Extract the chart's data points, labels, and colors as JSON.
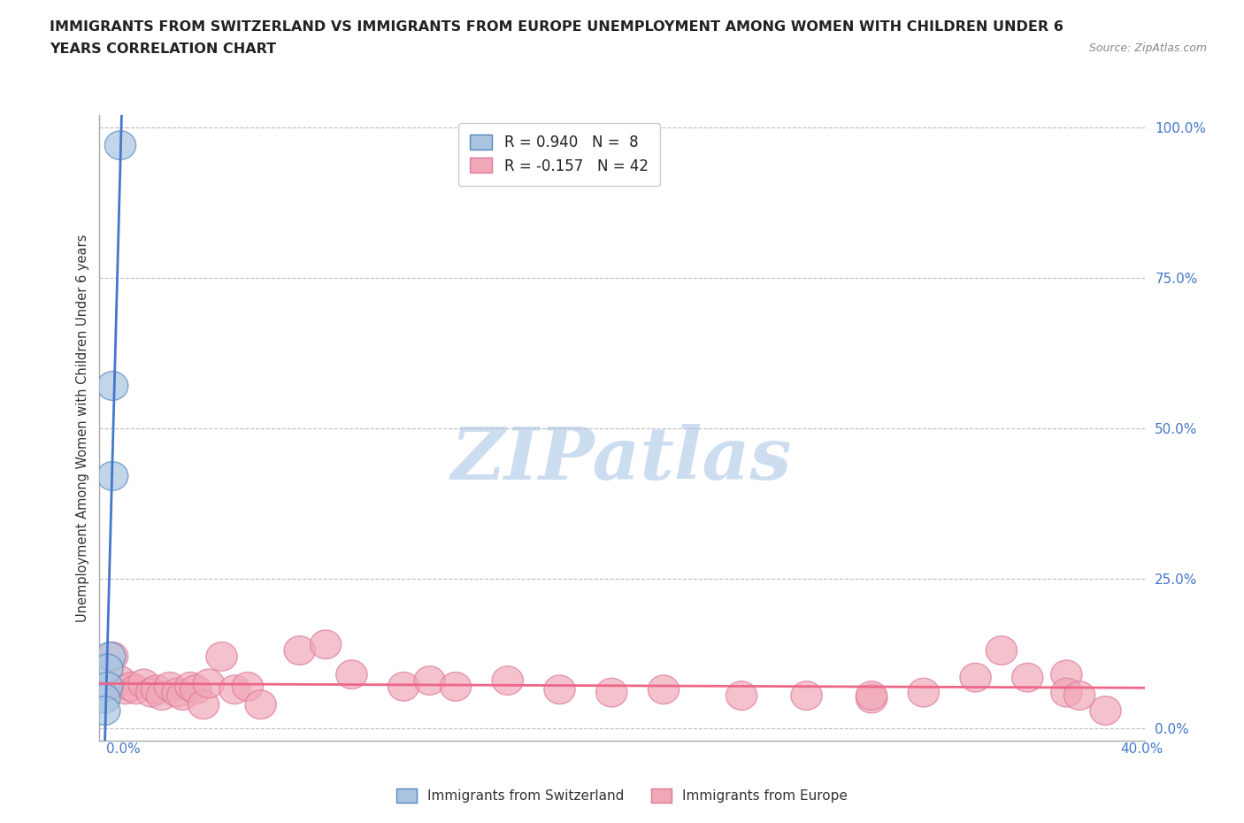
{
  "title_line1": "IMMIGRANTS FROM SWITZERLAND VS IMMIGRANTS FROM EUROPE UNEMPLOYMENT AMONG WOMEN WITH CHILDREN UNDER 6",
  "title_line2": "YEARS CORRELATION CHART",
  "source": "Source: ZipAtlas.com",
  "ylabel": "Unemployment Among Women with Children Under 6 years",
  "ytick_labels": [
    "0.0%",
    "25.0%",
    "50.0%",
    "75.0%",
    "100.0%"
  ],
  "ytick_values": [
    0.0,
    0.25,
    0.5,
    0.75,
    1.0
  ],
  "xlim": [
    -0.002,
    0.4
  ],
  "ylim": [
    -0.02,
    1.02
  ],
  "legend_r1": "R = 0.940   N =  8",
  "legend_r2": "R = -0.157   N = 42",
  "color_swiss_fill": "#A8C4E0",
  "color_swiss_edge": "#5588BB",
  "color_swiss_line": "#4477CC",
  "color_europe_fill": "#F0A8B8",
  "color_europe_edge": "#DD7799",
  "color_europe_line": "#EE6688",
  "background_color": "#FFFFFF",
  "watermark": "ZIPatlas",
  "watermark_color": "#C5D8EE",
  "swiss_points_x": [
    0.006,
    0.003,
    0.003,
    0.002,
    0.001,
    0.001,
    0.0,
    0.0
  ],
  "swiss_points_y": [
    0.97,
    0.57,
    0.42,
    0.12,
    0.1,
    0.07,
    0.05,
    0.03
  ],
  "europe_points_x": [
    0.003,
    0.006,
    0.008,
    0.01,
    0.012,
    0.015,
    0.018,
    0.02,
    0.022,
    0.025,
    0.028,
    0.03,
    0.033,
    0.035,
    0.038,
    0.04,
    0.045,
    0.05,
    0.055,
    0.06,
    0.075,
    0.085,
    0.095,
    0.115,
    0.125,
    0.135,
    0.155,
    0.175,
    0.195,
    0.215,
    0.245,
    0.27,
    0.295,
    0.315,
    0.335,
    0.345,
    0.355,
    0.37,
    0.385,
    0.37,
    0.295,
    0.375
  ],
  "europe_points_y": [
    0.12,
    0.08,
    0.065,
    0.07,
    0.065,
    0.075,
    0.06,
    0.065,
    0.055,
    0.07,
    0.06,
    0.055,
    0.07,
    0.065,
    0.04,
    0.075,
    0.12,
    0.065,
    0.07,
    0.04,
    0.13,
    0.14,
    0.09,
    0.07,
    0.08,
    0.07,
    0.08,
    0.065,
    0.06,
    0.065,
    0.055,
    0.055,
    0.05,
    0.06,
    0.085,
    0.13,
    0.085,
    0.09,
    0.03,
    0.06,
    0.055,
    0.055
  ]
}
